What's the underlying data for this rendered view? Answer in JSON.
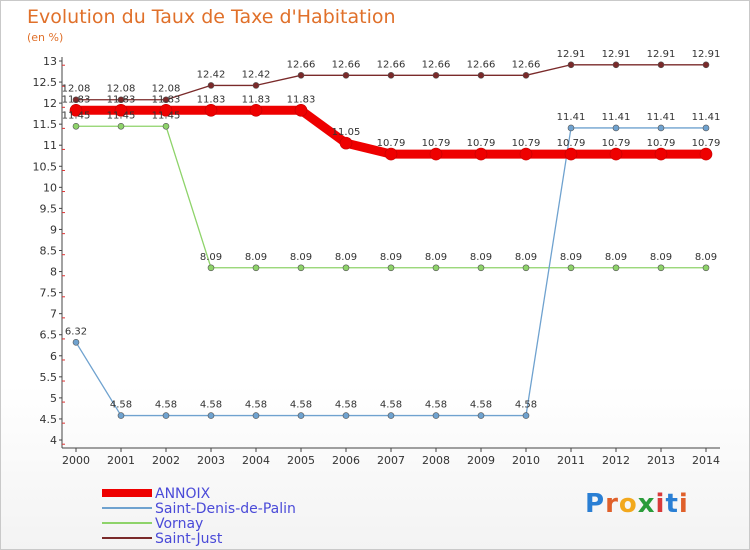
{
  "header": {
    "title": "Evolution du Taux de Taxe d'Habitation",
    "subtitle": "(en %)"
  },
  "logo": {
    "letters": [
      "P",
      "r",
      "o",
      "x",
      "i",
      "t",
      "i"
    ],
    "colors": [
      "#2a7fd4",
      "#e0602a",
      "#f2a81d",
      "#2a9c3a",
      "#d83a3a",
      "#2a7fd4",
      "#e0602a"
    ]
  },
  "chart_data": {
    "type": "line",
    "x": [
      "2000",
      "2001",
      "2002",
      "2003",
      "2004",
      "2005",
      "2006",
      "2007",
      "2008",
      "2009",
      "2010",
      "2011",
      "2012",
      "2013",
      "2014"
    ],
    "ylim": [
      4,
      13
    ],
    "yticks": [
      "4",
      "4.5",
      "5",
      "5.5",
      "6",
      "6.5",
      "7",
      "7.5",
      "8",
      "8.5",
      "9",
      "9.5",
      "10",
      "10.5",
      "11",
      "11.5",
      "12",
      "12.5",
      "13"
    ],
    "grid": false,
    "legend_position": "bottom-left",
    "series": [
      {
        "name": "Saint-Just",
        "color": "#7a2a2a",
        "values": [
          12.08,
          12.08,
          12.08,
          12.42,
          12.42,
          12.66,
          12.66,
          12.66,
          12.66,
          12.66,
          12.66,
          12.91,
          12.91,
          12.91,
          12.91
        ],
        "labels": [
          "12.08",
          "12.08",
          "12.08",
          "12.42",
          "12.42",
          "12.66",
          "12.66",
          "12.66",
          "12.66",
          "12.66",
          "12.66",
          "12.91",
          "12.91",
          "12.91",
          "12.91"
        ]
      },
      {
        "name": "Vornay",
        "color": "#8ed36a",
        "values": [
          11.45,
          11.45,
          11.45,
          8.09,
          8.09,
          8.09,
          8.09,
          8.09,
          8.09,
          8.09,
          8.09,
          8.09,
          8.09,
          8.09,
          8.09
        ],
        "labels": [
          "11.45",
          "11.45",
          "11.45",
          "8.09",
          "8.09",
          "8.09",
          "8.09",
          "8.09",
          "8.09",
          "8.09",
          "8.09",
          "8.09",
          "8.09",
          "8.09",
          "8.09"
        ]
      },
      {
        "name": "Saint-Denis-de-Palin",
        "color": "#6fa2cf",
        "values": [
          6.32,
          4.58,
          4.58,
          4.58,
          4.58,
          4.58,
          4.58,
          4.58,
          4.58,
          4.58,
          4.58,
          11.41,
          11.41,
          11.41,
          11.41
        ],
        "labels": [
          "6.32",
          "4.58",
          "4.58",
          "4.58",
          "4.58",
          "4.58",
          "4.58",
          "4.58",
          "4.58",
          "4.58",
          "4.58",
          "11.41",
          "11.41",
          "11.41",
          "11.41"
        ]
      },
      {
        "name": "ANNOIX",
        "color": "#ee0000",
        "values": [
          11.83,
          11.83,
          11.83,
          11.83,
          11.83,
          11.83,
          11.05,
          10.79,
          10.79,
          10.79,
          10.79,
          10.79,
          10.79,
          10.79,
          10.79
        ],
        "labels": [
          "11.83",
          "11.83",
          "11.83",
          "11.83",
          "11.83",
          "11.83",
          "11.05",
          "10.79",
          "10.79",
          "10.79",
          "10.79",
          "10.79",
          "10.79",
          "10.79",
          "10.79"
        ]
      }
    ],
    "legend_order": [
      "ANNOIX",
      "Saint-Denis-de-Palin",
      "Vornay",
      "Saint-Just"
    ]
  }
}
